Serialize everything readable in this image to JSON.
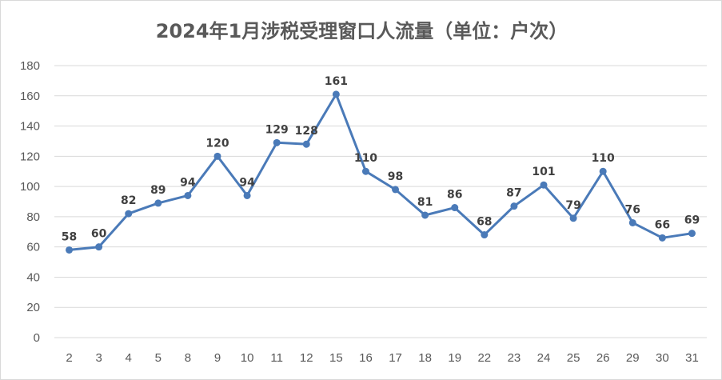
{
  "chart_data": {
    "type": "line",
    "title": "2024年1月涉税受理窗口人流量（单位：户次）",
    "categories": [
      "2",
      "3",
      "4",
      "5",
      "8",
      "9",
      "10",
      "11",
      "12",
      "15",
      "16",
      "17",
      "18",
      "19",
      "22",
      "23",
      "24",
      "25",
      "26",
      "29",
      "30",
      "31"
    ],
    "series": [
      {
        "values": [
          58,
          60,
          82,
          89,
          94,
          120,
          94,
          129,
          128,
          161,
          110,
          98,
          81,
          86,
          68,
          87,
          101,
          79,
          110,
          76,
          66,
          69
        ]
      }
    ],
    "ylim": [
      0,
      180
    ],
    "yticks": [
      0,
      20,
      40,
      60,
      80,
      100,
      120,
      140,
      160,
      180
    ],
    "grid": true,
    "legend": "none",
    "line_color": "#4a7ab8",
    "grid_color": "#d9d9d9"
  }
}
